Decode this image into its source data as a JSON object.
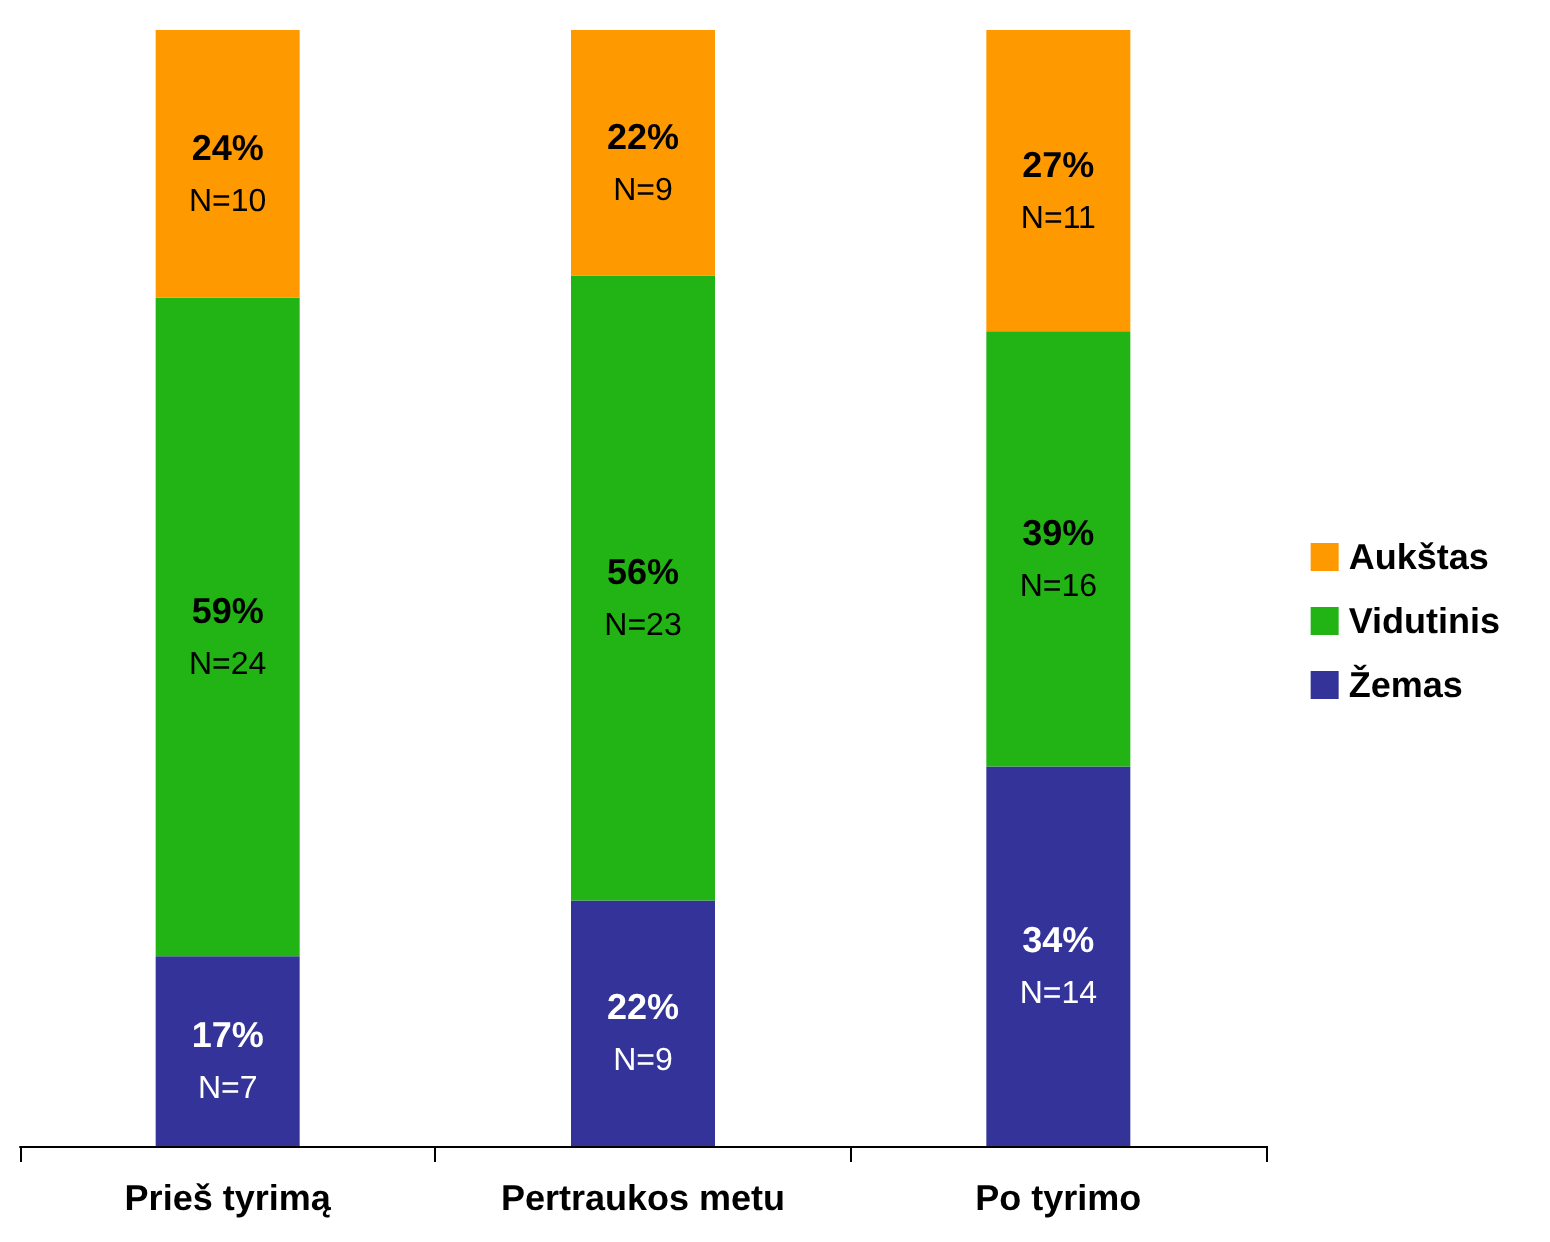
{
  "chart_data": {
    "type": "bar",
    "stacked": true,
    "categories": [
      "Prieš tyrimą",
      "Pertraukos metu",
      "Po tyrimo"
    ],
    "series": [
      {
        "name": "Žemas",
        "color": "#333399",
        "values": [
          17,
          22,
          34
        ],
        "value_labels": [
          "17%\nN=7",
          "22%\nN=9",
          "34%\nN=14"
        ]
      },
      {
        "name": "Vidutinis",
        "color": "#22b314",
        "values": [
          59,
          56,
          39
        ],
        "value_labels": [
          "59%\nN=24",
          "56%\nN=23",
          "39%\nN=16"
        ]
      },
      {
        "name": "Aukštas",
        "color": "#ff9900",
        "values": [
          24,
          22,
          27
        ],
        "value_labels": [
          "24%\nN=10",
          "22%\nN=9",
          "27%\nN=11"
        ]
      }
    ],
    "legend": "right"
  }
}
